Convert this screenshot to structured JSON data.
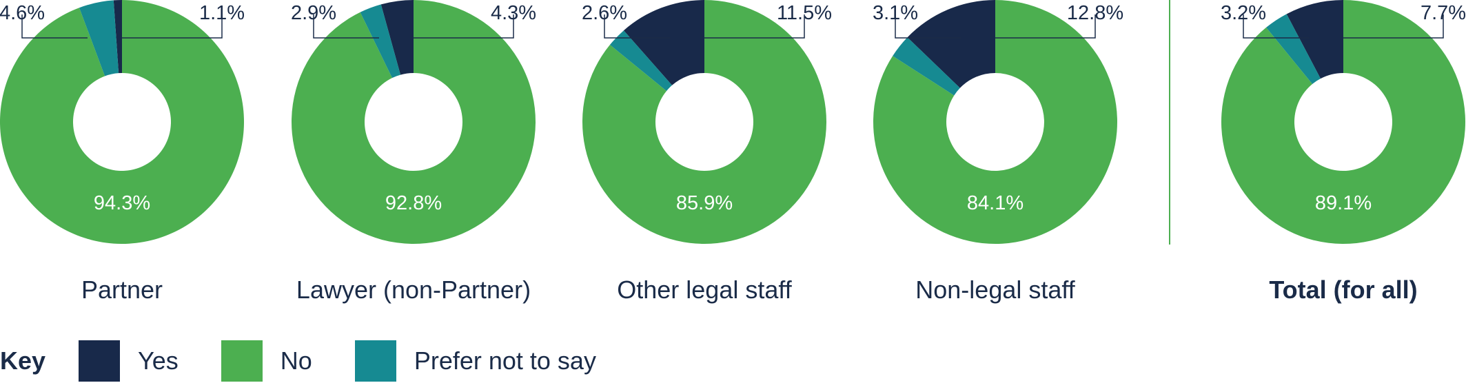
{
  "chart_data": {
    "type": "pie",
    "series_labels": [
      "Yes",
      "No",
      "Prefer not to say"
    ],
    "colors": {
      "Yes": "#18294a",
      "No": "#4caf50",
      "Prefer not to say": "#168a92"
    },
    "charts": [
      {
        "category": "Partner",
        "values": {
          "Yes": 1.1,
          "No": 94.3,
          "Prefer not to say": 4.6
        },
        "labels": {
          "Yes": "1.1%",
          "No": "94.3%",
          "Prefer not to say": "4.6%"
        }
      },
      {
        "category": "Lawyer (non-Partner)",
        "values": {
          "Yes": 4.3,
          "No": 92.8,
          "Prefer not to say": 2.9
        },
        "labels": {
          "Yes": "4.3%",
          "No": "92.8%",
          "Prefer not to say": "2.9%"
        }
      },
      {
        "category": "Other legal staff",
        "values": {
          "Yes": 11.5,
          "No": 85.9,
          "Prefer not to say": 2.6
        },
        "labels": {
          "Yes": "11.5%",
          "No": "85.9%",
          "Prefer not to say": "2.6%"
        }
      },
      {
        "category": "Non-legal staff",
        "values": {
          "Yes": 12.8,
          "No": 84.1,
          "Prefer not to say": 3.1
        },
        "labels": {
          "Yes": "12.8%",
          "No": "84.1%",
          "Prefer not to say": "3.1%"
        }
      },
      {
        "category": "Total (for all)",
        "values": {
          "Yes": 7.7,
          "No": 89.1,
          "Prefer not to say": 3.2
        },
        "labels": {
          "Yes": "7.7%",
          "No": "89.1%",
          "Prefer not to say": "3.2%"
        }
      }
    ]
  },
  "legend": {
    "title": "Key",
    "items": [
      {
        "label": "Yes",
        "color": "#18294a"
      },
      {
        "label": "No",
        "color": "#4caf50"
      },
      {
        "label": "Prefer not to say",
        "color": "#168a92"
      }
    ]
  }
}
